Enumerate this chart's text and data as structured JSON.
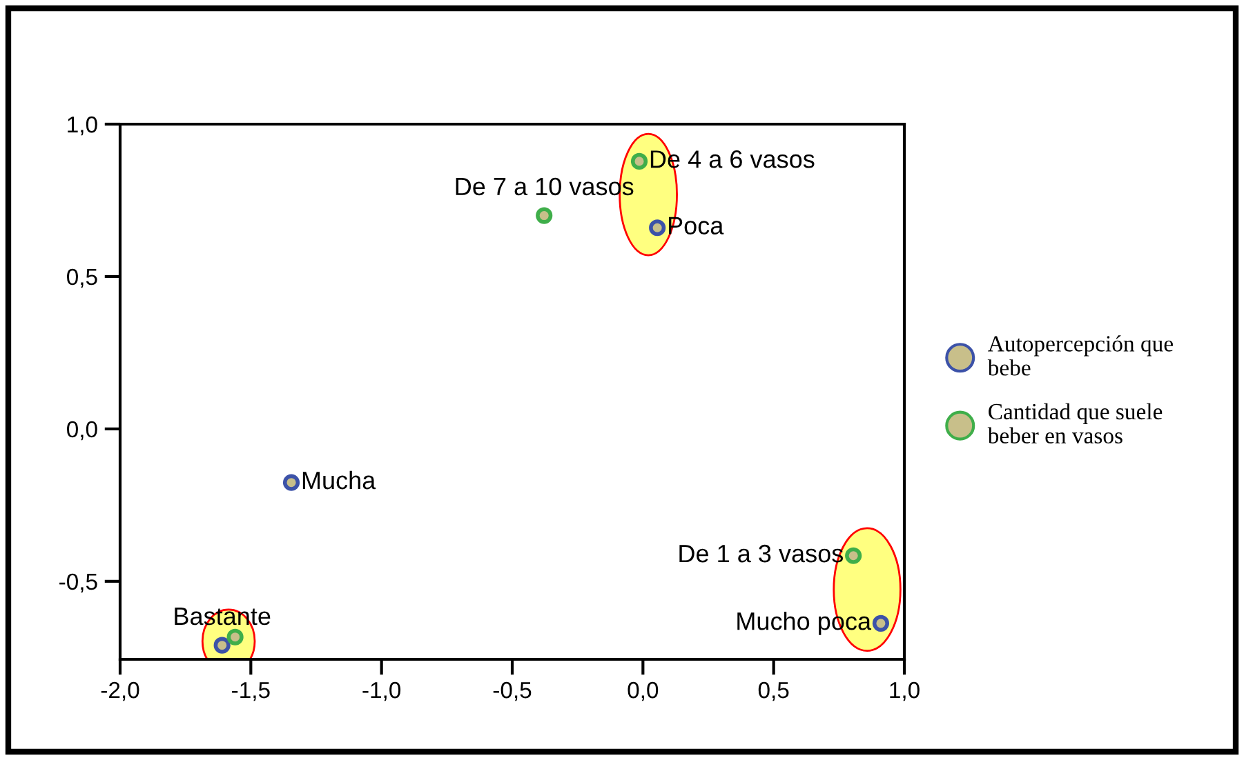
{
  "chart_data": {
    "type": "scatter",
    "xlim": [
      -2.0,
      1.0
    ],
    "ylim": [
      -0.756,
      1.0
    ],
    "xticks": [
      {
        "value": -2.0,
        "label": "-2,0"
      },
      {
        "value": -1.5,
        "label": "-1,5"
      },
      {
        "value": -1.0,
        "label": "-1,0"
      },
      {
        "value": -0.5,
        "label": "-0,5"
      },
      {
        "value": 0.0,
        "label": "0,0"
      },
      {
        "value": 0.5,
        "label": "0,5"
      },
      {
        "value": 1.0,
        "label": "1,0"
      }
    ],
    "yticks": [
      {
        "value": -0.5,
        "label": "-0,5"
      },
      {
        "value": 0.0,
        "label": "0,0"
      },
      {
        "value": 0.5,
        "label": "0,5"
      },
      {
        "value": 1.0,
        "label": "1,0"
      }
    ],
    "grid": false,
    "legend": "right",
    "marker": "circle",
    "series": [
      {
        "name": "Autopercepción que bebe",
        "color": "#3c52a8",
        "x": [
          0.055,
          -1.345,
          -1.61,
          0.91
        ],
        "values": [
          0.66,
          -0.176,
          -0.71,
          -0.638
        ]
      },
      {
        "name": "Cantidad que suele beber en vasos",
        "color": "#3fae4a",
        "x": [
          -0.014,
          -0.378,
          0.805,
          -1.56
        ],
        "values": [
          0.878,
          0.7,
          -0.416,
          -0.683
        ]
      }
    ],
    "annotations": [
      {
        "text": "Poca",
        "x": 0.055,
        "y": 0.66
      },
      {
        "text": "Mucha",
        "x": -1.345,
        "y": -0.176
      },
      {
        "text": "Bastante",
        "x": -1.61,
        "y": -0.71
      },
      {
        "text": "Mucho poca",
        "x": 0.91,
        "y": -0.638
      },
      {
        "text": "De 4 a 6 vasos",
        "x": -0.014,
        "y": 0.878
      },
      {
        "text": "De 7 a 10 vasos",
        "x": -0.378,
        "y": 0.7
      },
      {
        "text": "De 1 a 3 vasos",
        "x": 0.805,
        "y": -0.416
      }
    ]
  }
}
